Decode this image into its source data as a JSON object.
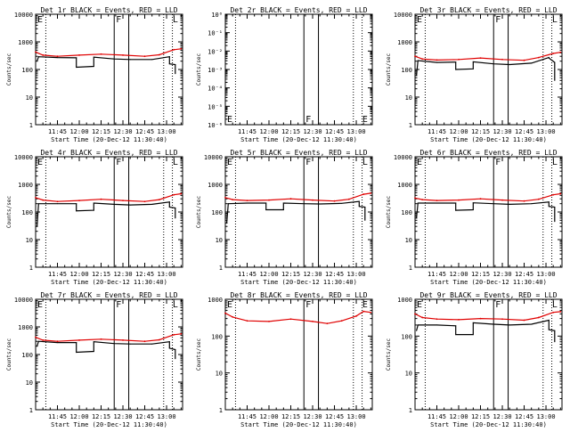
{
  "colors": {
    "events": "#000000",
    "lld": "#e00000",
    "axis": "#000000",
    "background": "#ffffff"
  },
  "chart_data": [
    {
      "type": "line",
      "title": "Det 1r BLACK = Events, RED = LLD",
      "xlabel": "Start Time (20-Dec-12 11:30:40)",
      "ylabel": "Counts/sec",
      "yscale": "log",
      "xlim": [
        "11:30",
        "13:11"
      ],
      "ylim": [
        1,
        10000
      ],
      "x_ticks": [
        "11:45",
        "12:00",
        "12:15",
        "12:30",
        "12:45",
        "13:00"
      ],
      "y_ticks": [
        "1",
        "10",
        "100",
        "1000",
        "10000"
      ],
      "markers": [
        {
          "label": "E",
          "time": "11:30"
        },
        {
          "label": "F",
          "time": "12:24"
        },
        {
          "label": "L",
          "time": "13:03"
        }
      ],
      "solid_lines": [
        "12:24",
        "12:34"
      ],
      "dotted_lines": [
        "11:37",
        "12:58",
        "13:04"
      ],
      "series": [
        {
          "name": "Events",
          "x": [
            "11:31",
            "11:32",
            "11:45",
            "11:58",
            "11:58",
            "12:10",
            "12:10",
            "12:24",
            "12:35",
            "12:50",
            "13:02",
            "13:02",
            "13:06",
            "13:06"
          ],
          "y": [
            200,
            290,
            270,
            265,
            120,
            130,
            280,
            240,
            230,
            230,
            290,
            160,
            150,
            70
          ]
        },
        {
          "name": "LLD",
          "x": [
            "11:30",
            "11:35",
            "11:45",
            "12:00",
            "12:15",
            "12:30",
            "12:45",
            "12:55",
            "13:05",
            "13:10"
          ],
          "y": [
            430,
            330,
            300,
            330,
            360,
            330,
            300,
            340,
            520,
            560
          ]
        }
      ]
    },
    {
      "type": "line",
      "title": "Det 2r BLACK = Events, RED = LLD",
      "xlabel": "Start Time (20-Dec-12 11:30:40)",
      "ylabel": "Counts/sec",
      "yscale": "log",
      "xlim": [
        "11:30",
        "13:11"
      ],
      "ylim": [
        1e-06,
        1
      ],
      "x_ticks": [
        "11:45",
        "12:00",
        "12:15",
        "12:30",
        "12:45",
        "13:00"
      ],
      "y_ticks": [
        "10⁻⁶",
        "10⁻⁵",
        "10⁻⁴",
        "10⁻³",
        "10⁻²",
        "10⁻¹",
        "10⁰"
      ],
      "markers": [
        {
          "label": "E",
          "time": "11:30",
          "pos": "bottom"
        },
        {
          "label": "F",
          "time": "12:24",
          "pos": "bottom"
        },
        {
          "label": "E",
          "time": "13:03",
          "pos": "bottom"
        }
      ],
      "solid_lines": [
        "12:24",
        "12:34"
      ],
      "dotted_lines": [
        "11:37",
        "12:58",
        "13:04"
      ],
      "series": []
    },
    {
      "type": "line",
      "title": "Det 3r BLACK = Events, RED = LLD",
      "xlabel": "Start Time (20-Dec-12 11:30:40)",
      "ylabel": "Counts/sec",
      "yscale": "log",
      "xlim": [
        "11:30",
        "13:11"
      ],
      "ylim": [
        1,
        10000
      ],
      "x_ticks": [
        "11:45",
        "12:00",
        "12:15",
        "12:30",
        "12:45",
        "13:00"
      ],
      "y_ticks": [
        "1",
        "10",
        "100",
        "1000",
        "10000"
      ],
      "markers": [
        {
          "label": "E",
          "time": "11:30"
        },
        {
          "label": "F",
          "time": "12:24"
        },
        {
          "label": "L",
          "time": "13:03"
        }
      ],
      "solid_lines": [
        "12:24",
        "12:34"
      ],
      "dotted_lines": [
        "11:37",
        "12:58",
        "13:04"
      ],
      "series": [
        {
          "name": "Events",
          "x": [
            "11:31",
            "11:32",
            "11:45",
            "11:58",
            "11:58",
            "12:10",
            "12:10",
            "12:24",
            "12:35",
            "12:50",
            "13:02",
            "13:02",
            "13:06",
            "13:06"
          ],
          "y": [
            60,
            210,
            180,
            185,
            100,
            105,
            190,
            160,
            150,
            170,
            270,
            260,
            180,
            40
          ]
        },
        {
          "name": "LLD",
          "x": [
            "11:30",
            "11:35",
            "11:45",
            "12:00",
            "12:15",
            "12:30",
            "12:45",
            "12:55",
            "13:05",
            "13:10"
          ],
          "y": [
            300,
            240,
            220,
            230,
            260,
            230,
            215,
            270,
            380,
            420
          ]
        }
      ]
    },
    {
      "type": "line",
      "title": "Det 4r BLACK = Events, RED = LLD",
      "xlabel": "Start Time (20-Dec-12 11:30:40)",
      "ylabel": "Counts/sec",
      "yscale": "log",
      "xlim": [
        "11:30",
        "13:11"
      ],
      "ylim": [
        1,
        10000
      ],
      "x_ticks": [
        "11:45",
        "12:00",
        "12:15",
        "12:30",
        "12:45",
        "13:00"
      ],
      "y_ticks": [
        "1",
        "10",
        "100",
        "1000",
        "10000"
      ],
      "markers": [
        {
          "label": "E",
          "time": "11:30"
        },
        {
          "label": "F",
          "time": "12:24"
        },
        {
          "label": "L",
          "time": "13:03"
        }
      ],
      "solid_lines": [
        "12:24",
        "12:34"
      ],
      "dotted_lines": [
        "11:37",
        "12:58",
        "13:04"
      ],
      "series": [
        {
          "name": "Events",
          "x": [
            "11:31",
            "11:32",
            "11:45",
            "11:58",
            "11:58",
            "12:10",
            "12:10",
            "12:24",
            "12:35",
            "12:50",
            "13:02",
            "13:02",
            "13:06",
            "13:06"
          ],
          "y": [
            30,
            200,
            200,
            200,
            110,
            115,
            210,
            190,
            180,
            190,
            230,
            150,
            140,
            60
          ]
        },
        {
          "name": "LLD",
          "x": [
            "11:30",
            "11:35",
            "11:45",
            "12:00",
            "12:15",
            "12:30",
            "12:45",
            "12:55",
            "13:05",
            "13:10"
          ],
          "y": [
            330,
            270,
            240,
            260,
            290,
            260,
            240,
            280,
            420,
            460
          ]
        }
      ]
    },
    {
      "type": "line",
      "title": "Det 5r BLACK = Events, RED = LLD",
      "xlabel": "Start Time (20-Dec-12 11:30:40)",
      "ylabel": "Counts/sec",
      "yscale": "log",
      "xlim": [
        "11:30",
        "13:11"
      ],
      "ylim": [
        1,
        10000
      ],
      "x_ticks": [
        "11:45",
        "12:00",
        "12:15",
        "12:30",
        "12:45",
        "13:00"
      ],
      "y_ticks": [
        "1",
        "10",
        "100",
        "1000",
        "10000"
      ],
      "markers": [
        {
          "label": "E",
          "time": "11:30"
        },
        {
          "label": "F",
          "time": "12:24"
        },
        {
          "label": "L",
          "time": "13:03"
        }
      ],
      "solid_lines": [
        "12:24",
        "12:34"
      ],
      "dotted_lines": [
        "11:37",
        "12:58",
        "13:04"
      ],
      "series": [
        {
          "name": "Events",
          "x": [
            "11:31",
            "11:32",
            "11:45",
            "11:58",
            "11:58",
            "12:10",
            "12:10",
            "12:24",
            "12:35",
            "12:50",
            "13:02",
            "13:02",
            "13:06",
            "13:06"
          ],
          "y": [
            40,
            200,
            210,
            210,
            120,
            120,
            210,
            200,
            195,
            205,
            240,
            160,
            150,
            50
          ]
        },
        {
          "name": "LLD",
          "x": [
            "11:30",
            "11:35",
            "11:45",
            "12:00",
            "12:15",
            "12:30",
            "12:45",
            "12:55",
            "13:05",
            "13:10"
          ],
          "y": [
            330,
            280,
            260,
            270,
            300,
            270,
            250,
            290,
            440,
            480
          ]
        }
      ]
    },
    {
      "type": "line",
      "title": "Det 6r BLACK = Events, RED = LLD",
      "xlabel": "Start Time (20-Dec-12 11:30:40)",
      "ylabel": "Counts/sec",
      "yscale": "log",
      "xlim": [
        "11:30",
        "13:11"
      ],
      "ylim": [
        1,
        10000
      ],
      "x_ticks": [
        "11:45",
        "12:00",
        "12:15",
        "12:30",
        "12:45",
        "13:00"
      ],
      "y_ticks": [
        "1",
        "10",
        "100",
        "1000",
        "10000"
      ],
      "markers": [
        {
          "label": "E",
          "time": "11:30"
        },
        {
          "label": "F",
          "time": "12:24"
        },
        {
          "label": "L",
          "time": "13:03"
        }
      ],
      "solid_lines": [
        "12:24",
        "12:34"
      ],
      "dotted_lines": [
        "11:37",
        "12:58",
        "13:04"
      ],
      "series": [
        {
          "name": "Events",
          "x": [
            "11:31",
            "11:32",
            "11:45",
            "11:58",
            "11:58",
            "12:10",
            "12:10",
            "12:24",
            "12:35",
            "12:50",
            "13:02",
            "13:02",
            "13:06",
            "13:06"
          ],
          "y": [
            60,
            210,
            210,
            210,
            115,
            120,
            215,
            200,
            190,
            200,
            230,
            160,
            150,
            45
          ]
        },
        {
          "name": "LLD",
          "x": [
            "11:30",
            "11:35",
            "11:45",
            "12:00",
            "12:15",
            "12:30",
            "12:45",
            "12:55",
            "13:05",
            "13:10"
          ],
          "y": [
            320,
            280,
            260,
            270,
            300,
            270,
            250,
            290,
            420,
            460
          ]
        }
      ]
    },
    {
      "type": "line",
      "title": "Det 7r BLACK = Events, RED = LLD",
      "xlabel": "Start Time (20-Dec-12 11:30:40)",
      "ylabel": "Counts/sec",
      "yscale": "log",
      "xlim": [
        "11:30",
        "13:11"
      ],
      "ylim": [
        1,
        10000
      ],
      "x_ticks": [
        "11:45",
        "12:00",
        "12:15",
        "12:30",
        "12:45",
        "13:00"
      ],
      "y_ticks": [
        "1",
        "10",
        "100",
        "1000",
        "10000"
      ],
      "markers": [
        {
          "label": "E",
          "time": "11:30"
        },
        {
          "label": "F",
          "time": "12:24"
        },
        {
          "label": "L",
          "time": "13:03"
        }
      ],
      "solid_lines": [
        "12:24",
        "12:34"
      ],
      "dotted_lines": [
        "11:37",
        "12:58",
        "13:04"
      ],
      "series": [
        {
          "name": "Events",
          "x": [
            "11:31",
            "11:32",
            "11:45",
            "11:58",
            "11:58",
            "12:10",
            "12:10",
            "12:24",
            "12:35",
            "12:50",
            "13:02",
            "13:02",
            "13:06",
            "13:06"
          ],
          "y": [
            200,
            300,
            270,
            270,
            120,
            130,
            290,
            250,
            240,
            240,
            290,
            170,
            150,
            70
          ]
        },
        {
          "name": "LLD",
          "x": [
            "11:30",
            "11:35",
            "11:45",
            "12:00",
            "12:15",
            "12:30",
            "12:45",
            "12:55",
            "13:05",
            "13:10"
          ],
          "y": [
            420,
            330,
            300,
            330,
            360,
            330,
            300,
            340,
            520,
            560
          ]
        }
      ]
    },
    {
      "type": "line",
      "title": "Det 8r BLACK = Events, RED = LLD",
      "xlabel": "Start Time (20-Dec-12 11:30:40)",
      "ylabel": "Counts/sec",
      "yscale": "log",
      "xlim": [
        "11:30",
        "13:11"
      ],
      "ylim": [
        1,
        1000
      ],
      "x_ticks": [
        "11:45",
        "12:00",
        "12:15",
        "12:30",
        "12:45",
        "13:00"
      ],
      "y_ticks": [
        "1",
        "10",
        "100",
        "1000"
      ],
      "markers": [
        {
          "label": "E",
          "time": "11:30"
        },
        {
          "label": "F",
          "time": "12:24"
        },
        {
          "label": "E",
          "time": "13:03"
        }
      ],
      "solid_lines": [
        "12:24",
        "12:34"
      ],
      "dotted_lines": [
        "11:37",
        "12:58",
        "13:04"
      ],
      "series": [
        {
          "name": "LLD",
          "x": [
            "11:30",
            "11:35",
            "11:45",
            "12:00",
            "12:15",
            "12:30",
            "12:40",
            "12:50",
            "13:00",
            "13:05",
            "13:10"
          ],
          "y": [
            420,
            330,
            260,
            250,
            290,
            250,
            220,
            260,
            350,
            470,
            440
          ]
        }
      ]
    },
    {
      "type": "line",
      "title": "Det 9r BLACK = Events, RED = LLD",
      "xlabel": "Start Time (20-Dec-12 11:30:40)",
      "ylabel": "Counts/sec",
      "yscale": "log",
      "xlim": [
        "11:30",
        "13:11"
      ],
      "ylim": [
        1,
        1000
      ],
      "x_ticks": [
        "11:45",
        "12:00",
        "12:15",
        "12:30",
        "12:45",
        "13:00"
      ],
      "y_ticks": [
        "1",
        "10",
        "100",
        "1000"
      ],
      "markers": [
        {
          "label": "E",
          "time": "11:30"
        },
        {
          "label": "F",
          "time": "12:24"
        },
        {
          "label": "L",
          "time": "13:03"
        }
      ],
      "solid_lines": [
        "12:24",
        "12:34"
      ],
      "dotted_lines": [
        "11:37",
        "12:58",
        "13:04"
      ],
      "series": [
        {
          "name": "Events",
          "x": [
            "11:31",
            "11:32",
            "11:45",
            "11:58",
            "11:58",
            "12:10",
            "12:10",
            "12:24",
            "12:35",
            "12:50",
            "13:02",
            "13:02",
            "13:06",
            "13:06"
          ],
          "y": [
            140,
            200,
            200,
            190,
            110,
            110,
            230,
            210,
            200,
            210,
            270,
            150,
            140,
            70
          ]
        },
        {
          "name": "LLD",
          "x": [
            "11:30",
            "11:35",
            "11:45",
            "12:00",
            "12:15",
            "12:30",
            "12:45",
            "12:55",
            "13:05",
            "13:10"
          ],
          "y": [
            400,
            320,
            290,
            280,
            300,
            290,
            270,
            320,
            440,
            460
          ]
        }
      ]
    }
  ]
}
